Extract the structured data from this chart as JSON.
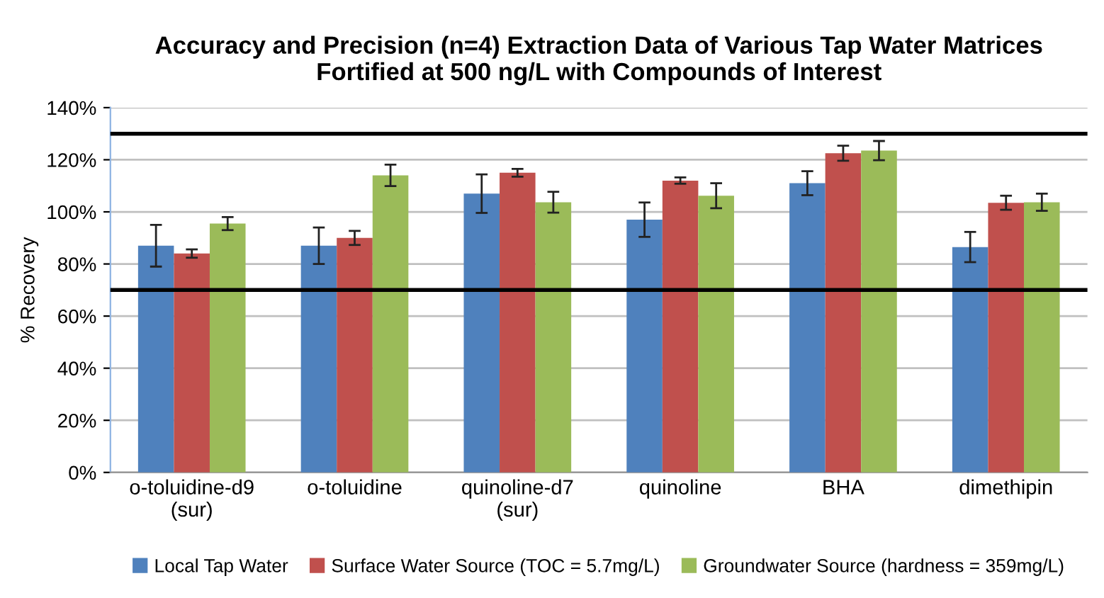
{
  "chart_data": {
    "type": "bar",
    "title": "Accuracy and Precision (n=4) Extraction Data of Various Tap Water Matrices\nFortified at 500 ng/L with Compounds of Interest",
    "ylabel": "% Recovery",
    "categories": [
      "o-toluidine-d9\n(sur)",
      "o-toluidine",
      "quinoline-d7\n(sur)",
      "quinoline",
      "BHA",
      "dimethipin"
    ],
    "series": [
      {
        "name": "Local Tap Water",
        "color": "#4f81bd",
        "values": [
          87,
          87,
          107,
          97,
          111,
          86.5
        ],
        "errors": [
          8,
          7,
          7.4,
          6.6,
          4.6,
          5.8
        ]
      },
      {
        "name": "Surface Water Source (TOC = 5.7mg/L)",
        "color": "#c0504d",
        "values": [
          84,
          90,
          115,
          112,
          122.5,
          103.5
        ],
        "errors": [
          1.6,
          2.7,
          1.5,
          1.2,
          2.9,
          2.7
        ]
      },
      {
        "name": "Groundwater Source (hardness = 359mg/L)",
        "color": "#9bbb59",
        "values": [
          95.5,
          114,
          103.7,
          106.2,
          123.5,
          103.7
        ],
        "errors": [
          2.5,
          4.1,
          4,
          4.8,
          3.7,
          3.3
        ]
      }
    ],
    "ylim": [
      0,
      140
    ],
    "yticks": [
      {
        "value": 0,
        "label": "0%"
      },
      {
        "value": 20,
        "label": "20%"
      },
      {
        "value": 40,
        "label": "40%"
      },
      {
        "value": 60,
        "label": "60%"
      },
      {
        "value": 80,
        "label": "80%"
      },
      {
        "value": 100,
        "label": "100%"
      },
      {
        "value": 120,
        "label": "120%"
      },
      {
        "value": 140,
        "label": "140%"
      }
    ],
    "ref_lines": [
      {
        "axis": "y",
        "value": 130,
        "color": "#000000"
      },
      {
        "axis": "y",
        "value": 70,
        "color": "#000000"
      }
    ],
    "grid": "y",
    "legend": "bottom"
  }
}
